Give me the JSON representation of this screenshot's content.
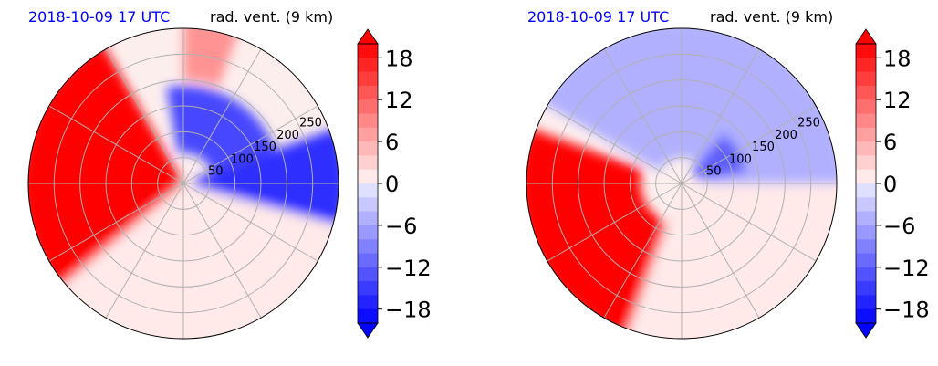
{
  "chart_data": [
    {
      "type": "heatmap",
      "projection": "polar",
      "subtitle": "2018-10-09 17 UTC",
      "title": "rad. vent. (9 km)",
      "range_rings_km": [
        50,
        100,
        150,
        200,
        250
      ],
      "range_ring_labels": [
        "50",
        "100",
        "150",
        "200",
        "250"
      ],
      "grid": true,
      "colorbar": {
        "min": -20,
        "max": 20,
        "step": 2,
        "ticks": [
          18,
          12,
          6,
          0,
          -6,
          -12,
          -18
        ],
        "tick_labels": [
          "18",
          "12",
          "6",
          "0",
          "−6",
          "−12",
          "−18"
        ],
        "extend": "both"
      },
      "field_regions": [
        {
          "sector": "west-northwest",
          "az_deg": [
            230,
            330
          ],
          "range_km": [
            0,
            300
          ],
          "value": 20,
          "label": "strong outbound (red)"
        },
        {
          "sector": "north-northeast",
          "az_deg": [
            350,
            70
          ],
          "range_km": [
            60,
            180
          ],
          "value": -14,
          "label": "inbound (blue)"
        },
        {
          "sector": "east",
          "az_deg": [
            70,
            105
          ],
          "range_km": [
            20,
            300
          ],
          "value": -16,
          "label": "inbound (blue)"
        },
        {
          "sector": "north",
          "az_deg": [
            0,
            20
          ],
          "range_km": [
            200,
            300
          ],
          "value": 8,
          "label": "weak outbound (pink)"
        },
        {
          "sector": "south",
          "az_deg": [
            105,
            230
          ],
          "range_km": [
            0,
            300
          ],
          "value": 1,
          "label": "near zero"
        }
      ]
    },
    {
      "type": "heatmap",
      "projection": "polar",
      "subtitle": "2018-10-09 17 UTC",
      "title": "rad. vent. (9 km)",
      "range_rings_km": [
        50,
        100,
        150,
        200,
        250
      ],
      "range_ring_labels": [
        "50",
        "100",
        "150",
        "200",
        "250"
      ],
      "grid": true,
      "colorbar": {
        "min": -20,
        "max": 20,
        "step": 2,
        "ticks": [
          18,
          12,
          6,
          0,
          -6,
          -12,
          -18
        ],
        "tick_labels": [
          "18",
          "12",
          "6",
          "0",
          "−6",
          "−12",
          "−18"
        ],
        "extend": "both"
      },
      "field_regions": [
        {
          "sector": "southwest",
          "az_deg": [
            200,
            290
          ],
          "range_km": [
            80,
            300
          ],
          "value": 20,
          "label": "strong outbound (red)"
        },
        {
          "sector": "north",
          "az_deg": [
            300,
            90
          ],
          "range_km": [
            50,
            300
          ],
          "value": -5,
          "label": "weak inbound (scattered blue)"
        },
        {
          "sector": "northeast",
          "az_deg": [
            40,
            80
          ],
          "range_km": [
            30,
            120
          ],
          "value": -12,
          "label": "inbound patch (blue)"
        },
        {
          "sector": "south-east",
          "az_deg": [
            90,
            200
          ],
          "range_km": [
            0,
            300
          ],
          "value": 1,
          "label": "near zero"
        }
      ]
    }
  ],
  "colors": {
    "date_text": "#0000ff",
    "positive_max": "#ff0000",
    "negative_max": "#0000ff",
    "zero": "#ffffff",
    "grid": "#b0b0b0"
  }
}
